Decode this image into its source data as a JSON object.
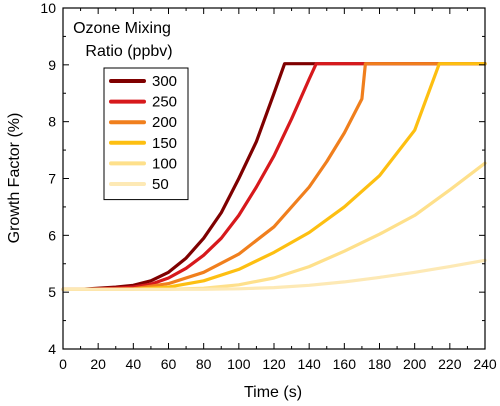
{
  "chart_data": {
    "type": "line",
    "xlabel": "Time (s)",
    "ylabel": "Growth Factor (%)",
    "xlim": [
      0,
      240
    ],
    "ylim": [
      4,
      10
    ],
    "x_ticks": [
      0,
      20,
      40,
      60,
      80,
      100,
      120,
      140,
      160,
      180,
      200,
      220,
      240
    ],
    "y_ticks": [
      4,
      5,
      6,
      7,
      8,
      9,
      10
    ],
    "grid": false,
    "legend": {
      "title_line1": "Ozone Mixing",
      "title_line2": "Ratio (ppbv)",
      "placement": "top-left"
    },
    "series": [
      {
        "name": "300",
        "color": "#7f0000",
        "x": [
          0,
          10,
          20,
          30,
          40,
          50,
          60,
          70,
          80,
          90,
          100,
          110,
          120,
          126,
          240
        ],
        "y": [
          5.05,
          5.05,
          5.07,
          5.09,
          5.12,
          5.2,
          5.35,
          5.6,
          5.95,
          6.4,
          7.0,
          7.65,
          8.5,
          9.02,
          9.02
        ]
      },
      {
        "name": "250",
        "color": "#d7191c",
        "x": [
          0,
          10,
          20,
          30,
          40,
          50,
          60,
          70,
          80,
          90,
          100,
          110,
          120,
          130,
          140,
          144,
          240
        ],
        "y": [
          5.05,
          5.05,
          5.06,
          5.07,
          5.09,
          5.14,
          5.25,
          5.42,
          5.65,
          5.95,
          6.35,
          6.85,
          7.4,
          8.05,
          8.75,
          9.02,
          9.02
        ]
      },
      {
        "name": "200",
        "color": "#f07f1d",
        "x": [
          0,
          20,
          40,
          60,
          80,
          100,
          120,
          140,
          150,
          160,
          170,
          172,
          240
        ],
        "y": [
          5.05,
          5.05,
          5.06,
          5.15,
          5.35,
          5.67,
          6.15,
          6.85,
          7.3,
          7.8,
          8.4,
          9.02,
          9.02
        ]
      },
      {
        "name": "150",
        "color": "#fdbf11",
        "x": [
          0,
          20,
          40,
          60,
          80,
          100,
          120,
          140,
          160,
          180,
          200,
          214,
          240
        ],
        "y": [
          5.05,
          5.05,
          5.05,
          5.09,
          5.2,
          5.4,
          5.7,
          6.05,
          6.5,
          7.05,
          7.85,
          9.02,
          9.02
        ]
      },
      {
        "name": "100",
        "color": "#fee08b",
        "x": [
          0,
          20,
          40,
          60,
          80,
          100,
          120,
          140,
          160,
          180,
          200,
          220,
          240
        ],
        "y": [
          5.05,
          5.05,
          5.05,
          5.05,
          5.07,
          5.13,
          5.25,
          5.45,
          5.72,
          6.02,
          6.35,
          6.8,
          7.27
        ]
      },
      {
        "name": "50",
        "color": "#fde9b5",
        "x": [
          0,
          20,
          40,
          60,
          80,
          100,
          120,
          140,
          160,
          180,
          200,
          220,
          240
        ],
        "y": [
          5.05,
          5.05,
          5.05,
          5.05,
          5.05,
          5.06,
          5.08,
          5.12,
          5.18,
          5.26,
          5.35,
          5.45,
          5.56
        ]
      }
    ]
  }
}
